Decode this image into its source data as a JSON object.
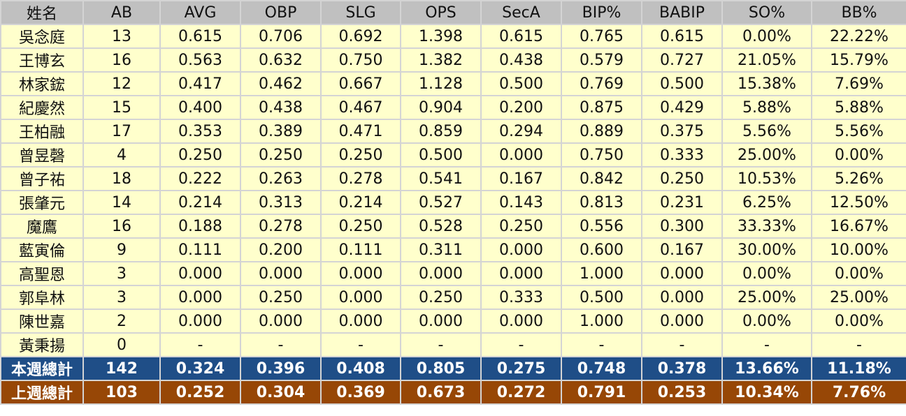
{
  "colors": {
    "header": "#c0c0c0",
    "row": "#ffffcc",
    "this_week": "#1f4e87",
    "last_week": "#974706"
  },
  "headers": [
    "姓名",
    "AB",
    "AVG",
    "OBP",
    "SLG",
    "OPS",
    "SecA",
    "BIP%",
    "BABIP",
    "SO%",
    "BB%"
  ],
  "rows": [
    [
      "吳念庭",
      "13",
      "0.615",
      "0.706",
      "0.692",
      "1.398",
      "0.615",
      "0.765",
      "0.615",
      "0.00%",
      "22.22%"
    ],
    [
      "王博玄",
      "16",
      "0.563",
      "0.632",
      "0.750",
      "1.382",
      "0.438",
      "0.579",
      "0.727",
      "21.05%",
      "15.79%"
    ],
    [
      "林家鋐",
      "12",
      "0.417",
      "0.462",
      "0.667",
      "1.128",
      "0.500",
      "0.769",
      "0.500",
      "15.38%",
      "7.69%"
    ],
    [
      "紀慶然",
      "15",
      "0.400",
      "0.438",
      "0.467",
      "0.904",
      "0.200",
      "0.875",
      "0.429",
      "5.88%",
      "5.88%"
    ],
    [
      "王柏融",
      "17",
      "0.353",
      "0.389",
      "0.471",
      "0.859",
      "0.294",
      "0.889",
      "0.375",
      "5.56%",
      "5.56%"
    ],
    [
      "曾昱磬",
      "4",
      "0.250",
      "0.250",
      "0.250",
      "0.500",
      "0.000",
      "0.750",
      "0.333",
      "25.00%",
      "0.00%"
    ],
    [
      "曾子祐",
      "18",
      "0.222",
      "0.263",
      "0.278",
      "0.541",
      "0.167",
      "0.842",
      "0.250",
      "10.53%",
      "5.26%"
    ],
    [
      "張肇元",
      "14",
      "0.214",
      "0.313",
      "0.214",
      "0.527",
      "0.143",
      "0.813",
      "0.231",
      "6.25%",
      "12.50%"
    ],
    [
      "魔鷹",
      "16",
      "0.188",
      "0.278",
      "0.250",
      "0.528",
      "0.250",
      "0.556",
      "0.300",
      "33.33%",
      "16.67%"
    ],
    [
      "藍寅倫",
      "9",
      "0.111",
      "0.200",
      "0.111",
      "0.311",
      "0.000",
      "0.600",
      "0.167",
      "30.00%",
      "10.00%"
    ],
    [
      "高聖恩",
      "3",
      "0.000",
      "0.000",
      "0.000",
      "0.000",
      "0.000",
      "1.000",
      "0.000",
      "0.00%",
      "0.00%"
    ],
    [
      "郭阜林",
      "3",
      "0.000",
      "0.250",
      "0.000",
      "0.250",
      "0.333",
      "0.500",
      "0.000",
      "25.00%",
      "25.00%"
    ],
    [
      "陳世嘉",
      "2",
      "0.000",
      "0.000",
      "0.000",
      "0.000",
      "0.000",
      "1.000",
      "0.000",
      "0.00%",
      "0.00%"
    ],
    [
      "黃秉揚",
      "0",
      "-",
      "-",
      "-",
      "-",
      "-",
      "-",
      "-",
      "-",
      "-"
    ]
  ],
  "this_week": [
    "本週總計",
    "142",
    "0.324",
    "0.396",
    "0.408",
    "0.805",
    "0.275",
    "0.748",
    "0.378",
    "13.66%",
    "11.18%"
  ],
  "last_week": [
    "上週總計",
    "103",
    "0.252",
    "0.304",
    "0.369",
    "0.673",
    "0.272",
    "0.791",
    "0.253",
    "10.34%",
    "7.76%"
  ]
}
